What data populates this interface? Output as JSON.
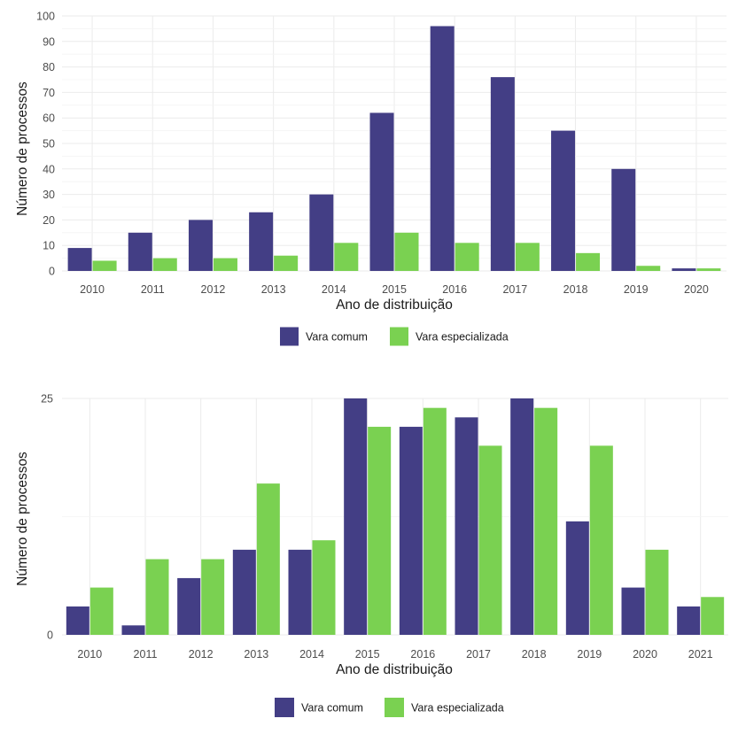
{
  "chart_data": [
    {
      "type": "bar",
      "title": "",
      "xlabel": "Ano de distribuição",
      "ylabel": "Número de processos",
      "categories": [
        "2010",
        "2011",
        "2012",
        "2013",
        "2014",
        "2015",
        "2016",
        "2017",
        "2018",
        "2019",
        "2020"
      ],
      "series": [
        {
          "name": "Vara comum",
          "color": "#433e85",
          "values": [
            9,
            15,
            20,
            23,
            30,
            62,
            96,
            76,
            55,
            40,
            1
          ]
        },
        {
          "name": "Vara especializada",
          "color": "#7ad151",
          "values": [
            4,
            5,
            5,
            6,
            11,
            15,
            11,
            11,
            7,
            2,
            1
          ]
        }
      ],
      "ylim": [
        0,
        100
      ],
      "yticks": [
        0,
        10,
        20,
        30,
        40,
        50,
        60,
        70,
        80,
        90,
        100
      ],
      "grid": true,
      "legend_position": "bottom"
    },
    {
      "type": "bar",
      "title": "",
      "xlabel": "Ano de distribuição",
      "ylabel": "Número de processos",
      "categories": [
        "2010",
        "2011",
        "2012",
        "2013",
        "2014",
        "2015",
        "2016",
        "2017",
        "2018",
        "2019",
        "2020",
        "2021"
      ],
      "series": [
        {
          "name": "Vara comum",
          "color": "#433e85",
          "values": [
            3,
            1,
            6,
            9,
            9,
            25,
            22,
            23,
            25,
            12,
            5,
            3
          ]
        },
        {
          "name": "Vara especializada",
          "color": "#7ad151",
          "values": [
            5,
            8,
            8,
            16,
            10,
            22,
            24,
            20,
            24,
            20,
            9,
            4
          ]
        }
      ],
      "ylim": [
        0,
        25
      ],
      "yticks": [
        0,
        25
      ],
      "grid": true,
      "legend_position": "bottom"
    }
  ]
}
